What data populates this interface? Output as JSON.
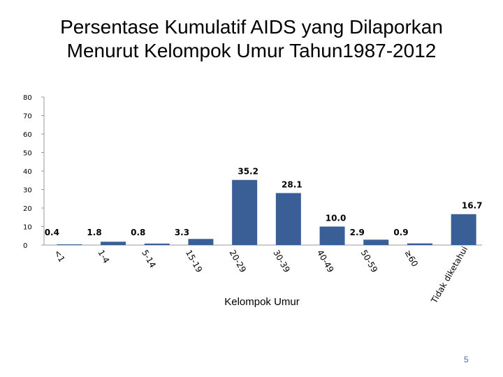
{
  "page_number": "5",
  "chart_data": {
    "type": "bar",
    "title": [
      "Persentase Kumulatif AIDS yang Dilaporkan",
      "Menurut Kelompok Umur Tahun1987-2012"
    ],
    "xlabel": "Kelompok Umur",
    "ylabel": "",
    "ylim": [
      0,
      80
    ],
    "yticks": [
      "0",
      "10",
      "20",
      "30",
      "40",
      "50",
      "60",
      "70",
      "80"
    ],
    "categories": [
      "<1",
      "1-4",
      "5-14",
      "15-19",
      "20-29",
      "30-39",
      "40-49",
      "50-59",
      "≥60",
      "Tidak diketahui"
    ],
    "values": [
      0.4,
      1.8,
      0.8,
      3.3,
      35.2,
      28.1,
      10.0,
      2.9,
      0.9,
      16.7
    ],
    "data_labels": [
      "0.4",
      "1.8",
      "0.8",
      "3.3",
      "35.2",
      "28.1",
      "10.0",
      "2.9",
      "0.9",
      "16.7"
    ],
    "bar_color": "#3a5f96",
    "grid": false,
    "legend": "none"
  }
}
